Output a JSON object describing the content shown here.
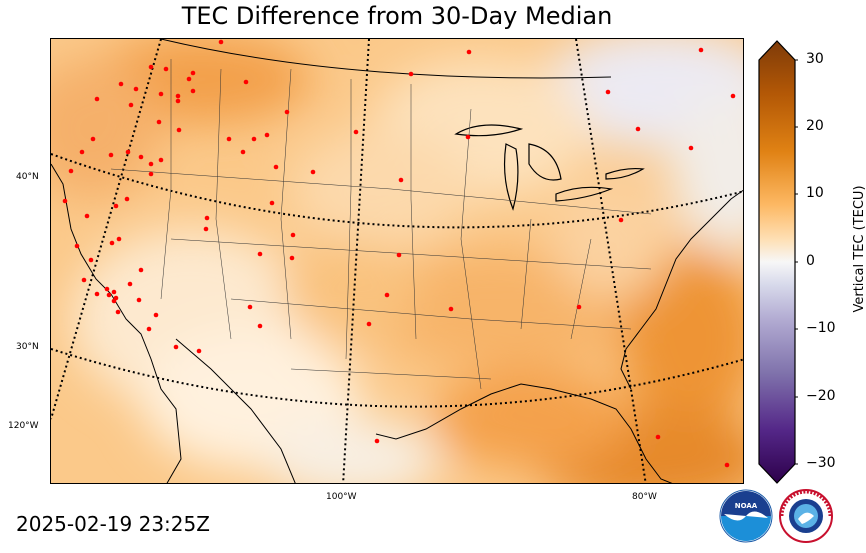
{
  "title": "TEC Difference from 30-Day Median",
  "timestamp": "2025-02-19 23:25Z",
  "gridlines": {
    "latitudes": [
      "40°N",
      "30°N"
    ],
    "longitudes": [
      "120°W",
      "100°W",
      "80°W"
    ]
  },
  "colorbar": {
    "label": "Vertical TEC (TECU)",
    "ticks": [
      "30",
      "20",
      "10",
      "0",
      "−10",
      "−20",
      "−30"
    ],
    "min": -30,
    "max": 30
  },
  "logos": {
    "noaa_text": "NOAA",
    "nws_text": "NATIONAL WEATHER SERVICE"
  },
  "colors": {
    "positive_strong": "#b35806",
    "positive_mid": "#f1a340",
    "positive_light": "#fdd9a6",
    "neutral": "#f7f7f7",
    "negative_light": "#d8daeb",
    "negative_mid": "#998ec3",
    "negative_strong": "#2d004b",
    "station": "#ff0000"
  }
}
